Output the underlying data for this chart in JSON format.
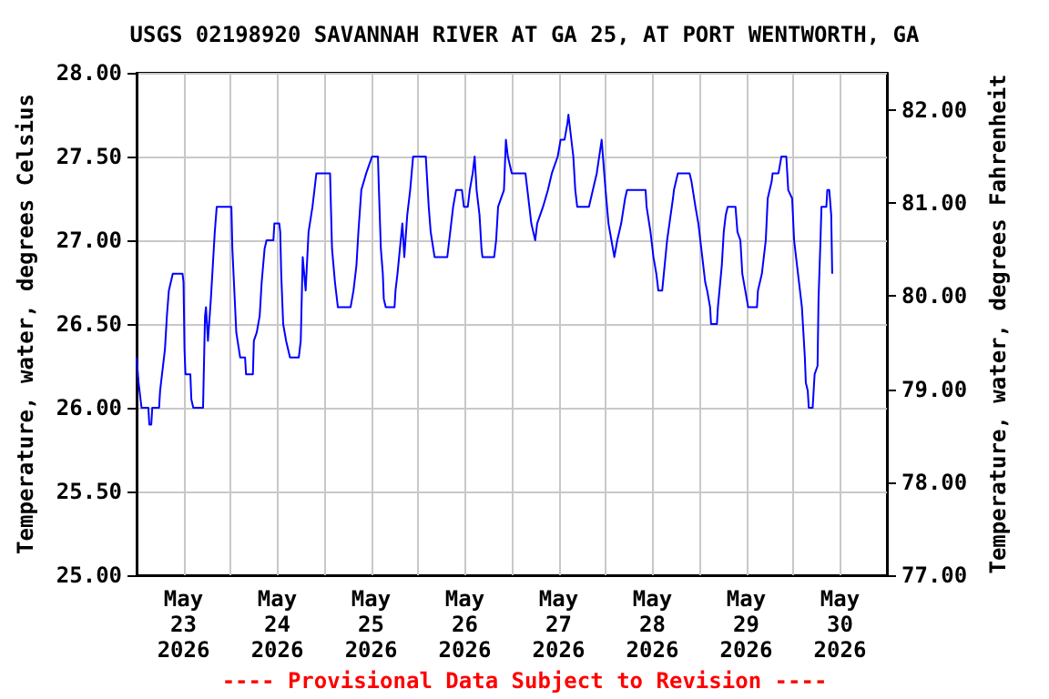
{
  "chart_data": {
    "type": "line",
    "title": "USGS 02198920 SAVANNAH RIVER AT GA 25, AT PORT WENTWORTH, GA",
    "ylabel": "Temperature, water, degrees Celsius",
    "y2label": "Temperature, water, degrees Fahrenheit",
    "annotations": [
      "---- Provisional Data Subject to Revision ----"
    ],
    "xlim": [
      "2026-05-23T00:00",
      "2026-05-31T00:00"
    ],
    "xticks": [
      {
        "value": "2026-05-23T12:00",
        "label": "May\n23\n2026"
      },
      {
        "value": "2026-05-24T12:00",
        "label": "May\n24\n2026"
      },
      {
        "value": "2026-05-25T12:00",
        "label": "May\n25\n2026"
      },
      {
        "value": "2026-05-26T12:00",
        "label": "May\n26\n2026"
      },
      {
        "value": "2026-05-27T12:00",
        "label": "May\n27\n2026"
      },
      {
        "value": "2026-05-28T12:00",
        "label": "May\n28\n2026"
      },
      {
        "value": "2026-05-29T12:00",
        "label": "May\n29\n2026"
      },
      {
        "value": "2026-05-30T12:00",
        "label": "May\n30\n2026"
      },
      {
        "value": "2026-05-24T00:00",
        "label": null
      },
      {
        "value": "2026-05-25T00:00",
        "label": null
      },
      {
        "value": "2026-05-26T00:00",
        "label": null
      },
      {
        "value": "2026-05-27T00:00",
        "label": null
      },
      {
        "value": "2026-05-28T00:00",
        "label": null
      },
      {
        "value": "2026-05-29T00:00",
        "label": null
      },
      {
        "value": "2026-05-30T00:00",
        "label": null
      }
    ],
    "ylim": [
      25,
      28
    ],
    "yticks": [
      {
        "value": 25,
        "label": "25.00"
      },
      {
        "value": 25.5,
        "label": "25.50"
      },
      {
        "value": 26,
        "label": "26.00"
      },
      {
        "value": 26.5,
        "label": "26.50"
      },
      {
        "value": 27,
        "label": "27.00"
      },
      {
        "value": 27.5,
        "label": "27.50"
      },
      {
        "value": 28,
        "label": "28.00"
      }
    ],
    "y2lim": [
      77,
      82.4
    ],
    "y2ticks": [
      {
        "value": 77,
        "label": "77.00"
      },
      {
        "value": 78,
        "label": "78.00"
      },
      {
        "value": 79,
        "label": "79.00"
      },
      {
        "value": 80,
        "label": "80.00"
      },
      {
        "value": 81,
        "label": "81.00"
      },
      {
        "value": 82,
        "label": "82.00"
      }
    ],
    "grid": true,
    "marker": "none",
    "series": [
      {
        "color": "#0000ff",
        "x": [
          "2026-05-23T00:00",
          "2026-05-23T00:30",
          "2026-05-23T01:15",
          "2026-05-23T03:00",
          "2026-05-23T03:15",
          "2026-05-23T03:45",
          "2026-05-23T04:00",
          "2026-05-23T05:45",
          "2026-05-23T06:00",
          "2026-05-23T06:30",
          "2026-05-23T07:15",
          "2026-05-23T07:45",
          "2026-05-23T08:15",
          "2026-05-23T09:15",
          "2026-05-23T11:45",
          "2026-05-23T12:00",
          "2026-05-23T12:15",
          "2026-05-23T12:30",
          "2026-05-23T13:45",
          "2026-05-23T14:00",
          "2026-05-23T14:30",
          "2026-05-23T17:00",
          "2026-05-23T17:30",
          "2026-05-23T17:45",
          "2026-05-23T18:15",
          "2026-05-23T19:00",
          "2026-05-23T19:30",
          "2026-05-23T20:00",
          "2026-05-23T20:30",
          "2026-05-24T00:15",
          "2026-05-24T00:30",
          "2026-05-24T01:00",
          "2026-05-24T01:30",
          "2026-05-24T02:30",
          "2026-05-24T03:45",
          "2026-05-24T04:00",
          "2026-05-24T05:45",
          "2026-05-24T06:00",
          "2026-05-24T06:45",
          "2026-05-24T07:30",
          "2026-05-24T08:00",
          "2026-05-24T08:45",
          "2026-05-24T09:15",
          "2026-05-24T11:00",
          "2026-05-24T11:15",
          "2026-05-24T12:30",
          "2026-05-24T12:45",
          "2026-05-24T13:00",
          "2026-05-24T13:30",
          "2026-05-24T14:15",
          "2026-05-24T15:15",
          "2026-05-24T17:30",
          "2026-05-24T18:00",
          "2026-05-24T18:30",
          "2026-05-24T19:15",
          "2026-05-24T20:00",
          "2026-05-24T21:00",
          "2026-05-24T21:30",
          "2026-05-24T22:00",
          "2026-05-25T01:30",
          "2026-05-25T02:00",
          "2026-05-25T02:45",
          "2026-05-25T03:30",
          "2026-05-25T06:45",
          "2026-05-25T07:30",
          "2026-05-25T08:15",
          "2026-05-25T08:45",
          "2026-05-25T09:30",
          "2026-05-25T10:45",
          "2026-05-25T11:30",
          "2026-05-25T12:15",
          "2026-05-25T13:45",
          "2026-05-25T14:00",
          "2026-05-25T14:30",
          "2026-05-25T15:00",
          "2026-05-25T15:15",
          "2026-05-25T15:45",
          "2026-05-25T18:00",
          "2026-05-25T18:15",
          "2026-05-25T18:45",
          "2026-05-25T20:00",
          "2026-05-25T20:30",
          "2026-05-25T21:15",
          "2026-05-25T22:00",
          "2026-05-25T22:45",
          "2026-05-26T02:00",
          "2026-05-26T02:45",
          "2026-05-26T03:15",
          "2026-05-26T04:15",
          "2026-05-26T07:30",
          "2026-05-26T08:00",
          "2026-05-26T09:00",
          "2026-05-26T09:45",
          "2026-05-26T11:15",
          "2026-05-26T11:45",
          "2026-05-26T12:45",
          "2026-05-26T13:15",
          "2026-05-26T14:00",
          "2026-05-26T14:30",
          "2026-05-26T15:00",
          "2026-05-26T15:45",
          "2026-05-26T16:15",
          "2026-05-26T16:30",
          "2026-05-26T19:30",
          "2026-05-26T20:00",
          "2026-05-26T20:30",
          "2026-05-26T22:00",
          "2026-05-26T22:30",
          "2026-05-26T23:00",
          "2026-05-27T00:00",
          "2026-05-27T03:30",
          "2026-05-27T04:30",
          "2026-05-27T05:00",
          "2026-05-27T06:00",
          "2026-05-27T06:30",
          "2026-05-27T08:00",
          "2026-05-27T09:15",
          "2026-05-27T10:15",
          "2026-05-27T11:45",
          "2026-05-27T12:30",
          "2026-05-27T13:30",
          "2026-05-27T14:15",
          "2026-05-27T14:30",
          "2026-05-27T15:45",
          "2026-05-27T16:15",
          "2026-05-27T16:45",
          "2026-05-27T19:45",
          "2026-05-27T20:45",
          "2026-05-27T21:45",
          "2026-05-27T23:00",
          "2026-05-28T00:00",
          "2026-05-28T00:45",
          "2026-05-28T01:30",
          "2026-05-28T02:15",
          "2026-05-28T03:00",
          "2026-05-28T04:00",
          "2026-05-28T05:00",
          "2026-05-28T05:30",
          "2026-05-28T10:15",
          "2026-05-28T10:30",
          "2026-05-28T11:30",
          "2026-05-28T12:15",
          "2026-05-28T13:00",
          "2026-05-28T13:30",
          "2026-05-28T14:30",
          "2026-05-28T15:45",
          "2026-05-28T17:15",
          "2026-05-28T17:30",
          "2026-05-28T18:30",
          "2026-05-28T21:30",
          "2026-05-28T22:00",
          "2026-05-28T23:00",
          "2026-05-28T23:45",
          "2026-05-29T00:15",
          "2026-05-29T01:00",
          "2026-05-29T01:30",
          "2026-05-29T02:00",
          "2026-05-29T02:45",
          "2026-05-29T03:00",
          "2026-05-29T04:30",
          "2026-05-29T04:45",
          "2026-05-29T05:45",
          "2026-05-29T06:15",
          "2026-05-29T06:45",
          "2026-05-29T07:15",
          "2026-05-29T09:15",
          "2026-05-29T09:45",
          "2026-05-29T10:30",
          "2026-05-29T11:00",
          "2026-05-29T11:45",
          "2026-05-29T12:30",
          "2026-05-29T14:45",
          "2026-05-29T15:00",
          "2026-05-29T16:00",
          "2026-05-29T17:00",
          "2026-05-29T17:30",
          "2026-05-29T18:30",
          "2026-05-29T18:45",
          "2026-05-29T20:15",
          "2026-05-29T21:00",
          "2026-05-29T22:15",
          "2026-05-29T22:45",
          "2026-05-29T23:45",
          "2026-05-30T00:15",
          "2026-05-30T01:15",
          "2026-05-30T01:45",
          "2026-05-30T02:15",
          "2026-05-30T02:30",
          "2026-05-30T03:00",
          "2026-05-30T03:15",
          "2026-05-30T03:45",
          "2026-05-30T04:00",
          "2026-05-30T05:00",
          "2026-05-30T05:30",
          "2026-05-30T06:15",
          "2026-05-30T06:30",
          "2026-05-30T07:00",
          "2026-05-30T07:15",
          "2026-05-30T08:30",
          "2026-05-30T08:45",
          "2026-05-30T09:15",
          "2026-05-30T09:45",
          "2026-05-30T10:00"
        ],
        "values": [
          26.3,
          26.15,
          26.0,
          26.0,
          25.9,
          25.9,
          26.0,
          26.0,
          26.1,
          26.2,
          26.35,
          26.55,
          26.7,
          26.8,
          26.8,
          26.75,
          26.35,
          26.2,
          26.2,
          26.05,
          26.0,
          26.0,
          26.55,
          26.6,
          26.4,
          26.65,
          26.85,
          27.05,
          27.2,
          27.2,
          26.95,
          26.7,
          26.45,
          26.3,
          26.3,
          26.2,
          26.2,
          26.4,
          26.45,
          26.55,
          26.75,
          26.95,
          27.0,
          27.0,
          27.1,
          27.1,
          27.05,
          26.8,
          26.5,
          26.4,
          26.3,
          26.3,
          26.4,
          26.9,
          26.7,
          27.05,
          27.2,
          27.3,
          27.4,
          27.4,
          26.95,
          26.75,
          26.6,
          26.6,
          26.7,
          26.85,
          27.05,
          27.3,
          27.4,
          27.45,
          27.5,
          27.5,
          27.3,
          26.95,
          26.8,
          26.65,
          26.6,
          26.6,
          26.7,
          26.8,
          27.1,
          26.9,
          27.15,
          27.3,
          27.5,
          27.5,
          27.2,
          27.05,
          26.9,
          26.9,
          27.0,
          27.2,
          27.3,
          27.3,
          27.2,
          27.2,
          27.3,
          27.4,
          27.5,
          27.3,
          27.15,
          26.95,
          26.9,
          26.9,
          27.0,
          27.2,
          27.3,
          27.6,
          27.5,
          27.4,
          27.4,
          27.2,
          27.1,
          27.0,
          27.1,
          27.2,
          27.3,
          27.4,
          27.5,
          27.6,
          27.6,
          27.7,
          27.75,
          27.5,
          27.3,
          27.2,
          27.2,
          27.3,
          27.4,
          27.6,
          27.3,
          27.1,
          27.0,
          26.9,
          27.0,
          27.1,
          27.25,
          27.3,
          27.3,
          27.2,
          27.05,
          26.9,
          26.8,
          26.7,
          26.7,
          27.0,
          27.25,
          27.3,
          27.4,
          27.4,
          27.35,
          27.2,
          27.1,
          27.0,
          26.85,
          26.75,
          26.7,
          26.6,
          26.5,
          26.5,
          26.6,
          26.85,
          27.05,
          27.15,
          27.2,
          27.2,
          27.05,
          27.0,
          26.8,
          26.7,
          26.6,
          26.6,
          26.7,
          26.8,
          27.0,
          27.25,
          27.35,
          27.4,
          27.4,
          27.5,
          27.5,
          27.3,
          27.25,
          27.0,
          26.8,
          26.7,
          26.6,
          26.5,
          26.3,
          26.15,
          26.1,
          26.0,
          26.0,
          26.2,
          26.25,
          26.65,
          27.0,
          27.2,
          27.2,
          27.3,
          27.3,
          27.15,
          26.8
        ]
      }
    ]
  }
}
